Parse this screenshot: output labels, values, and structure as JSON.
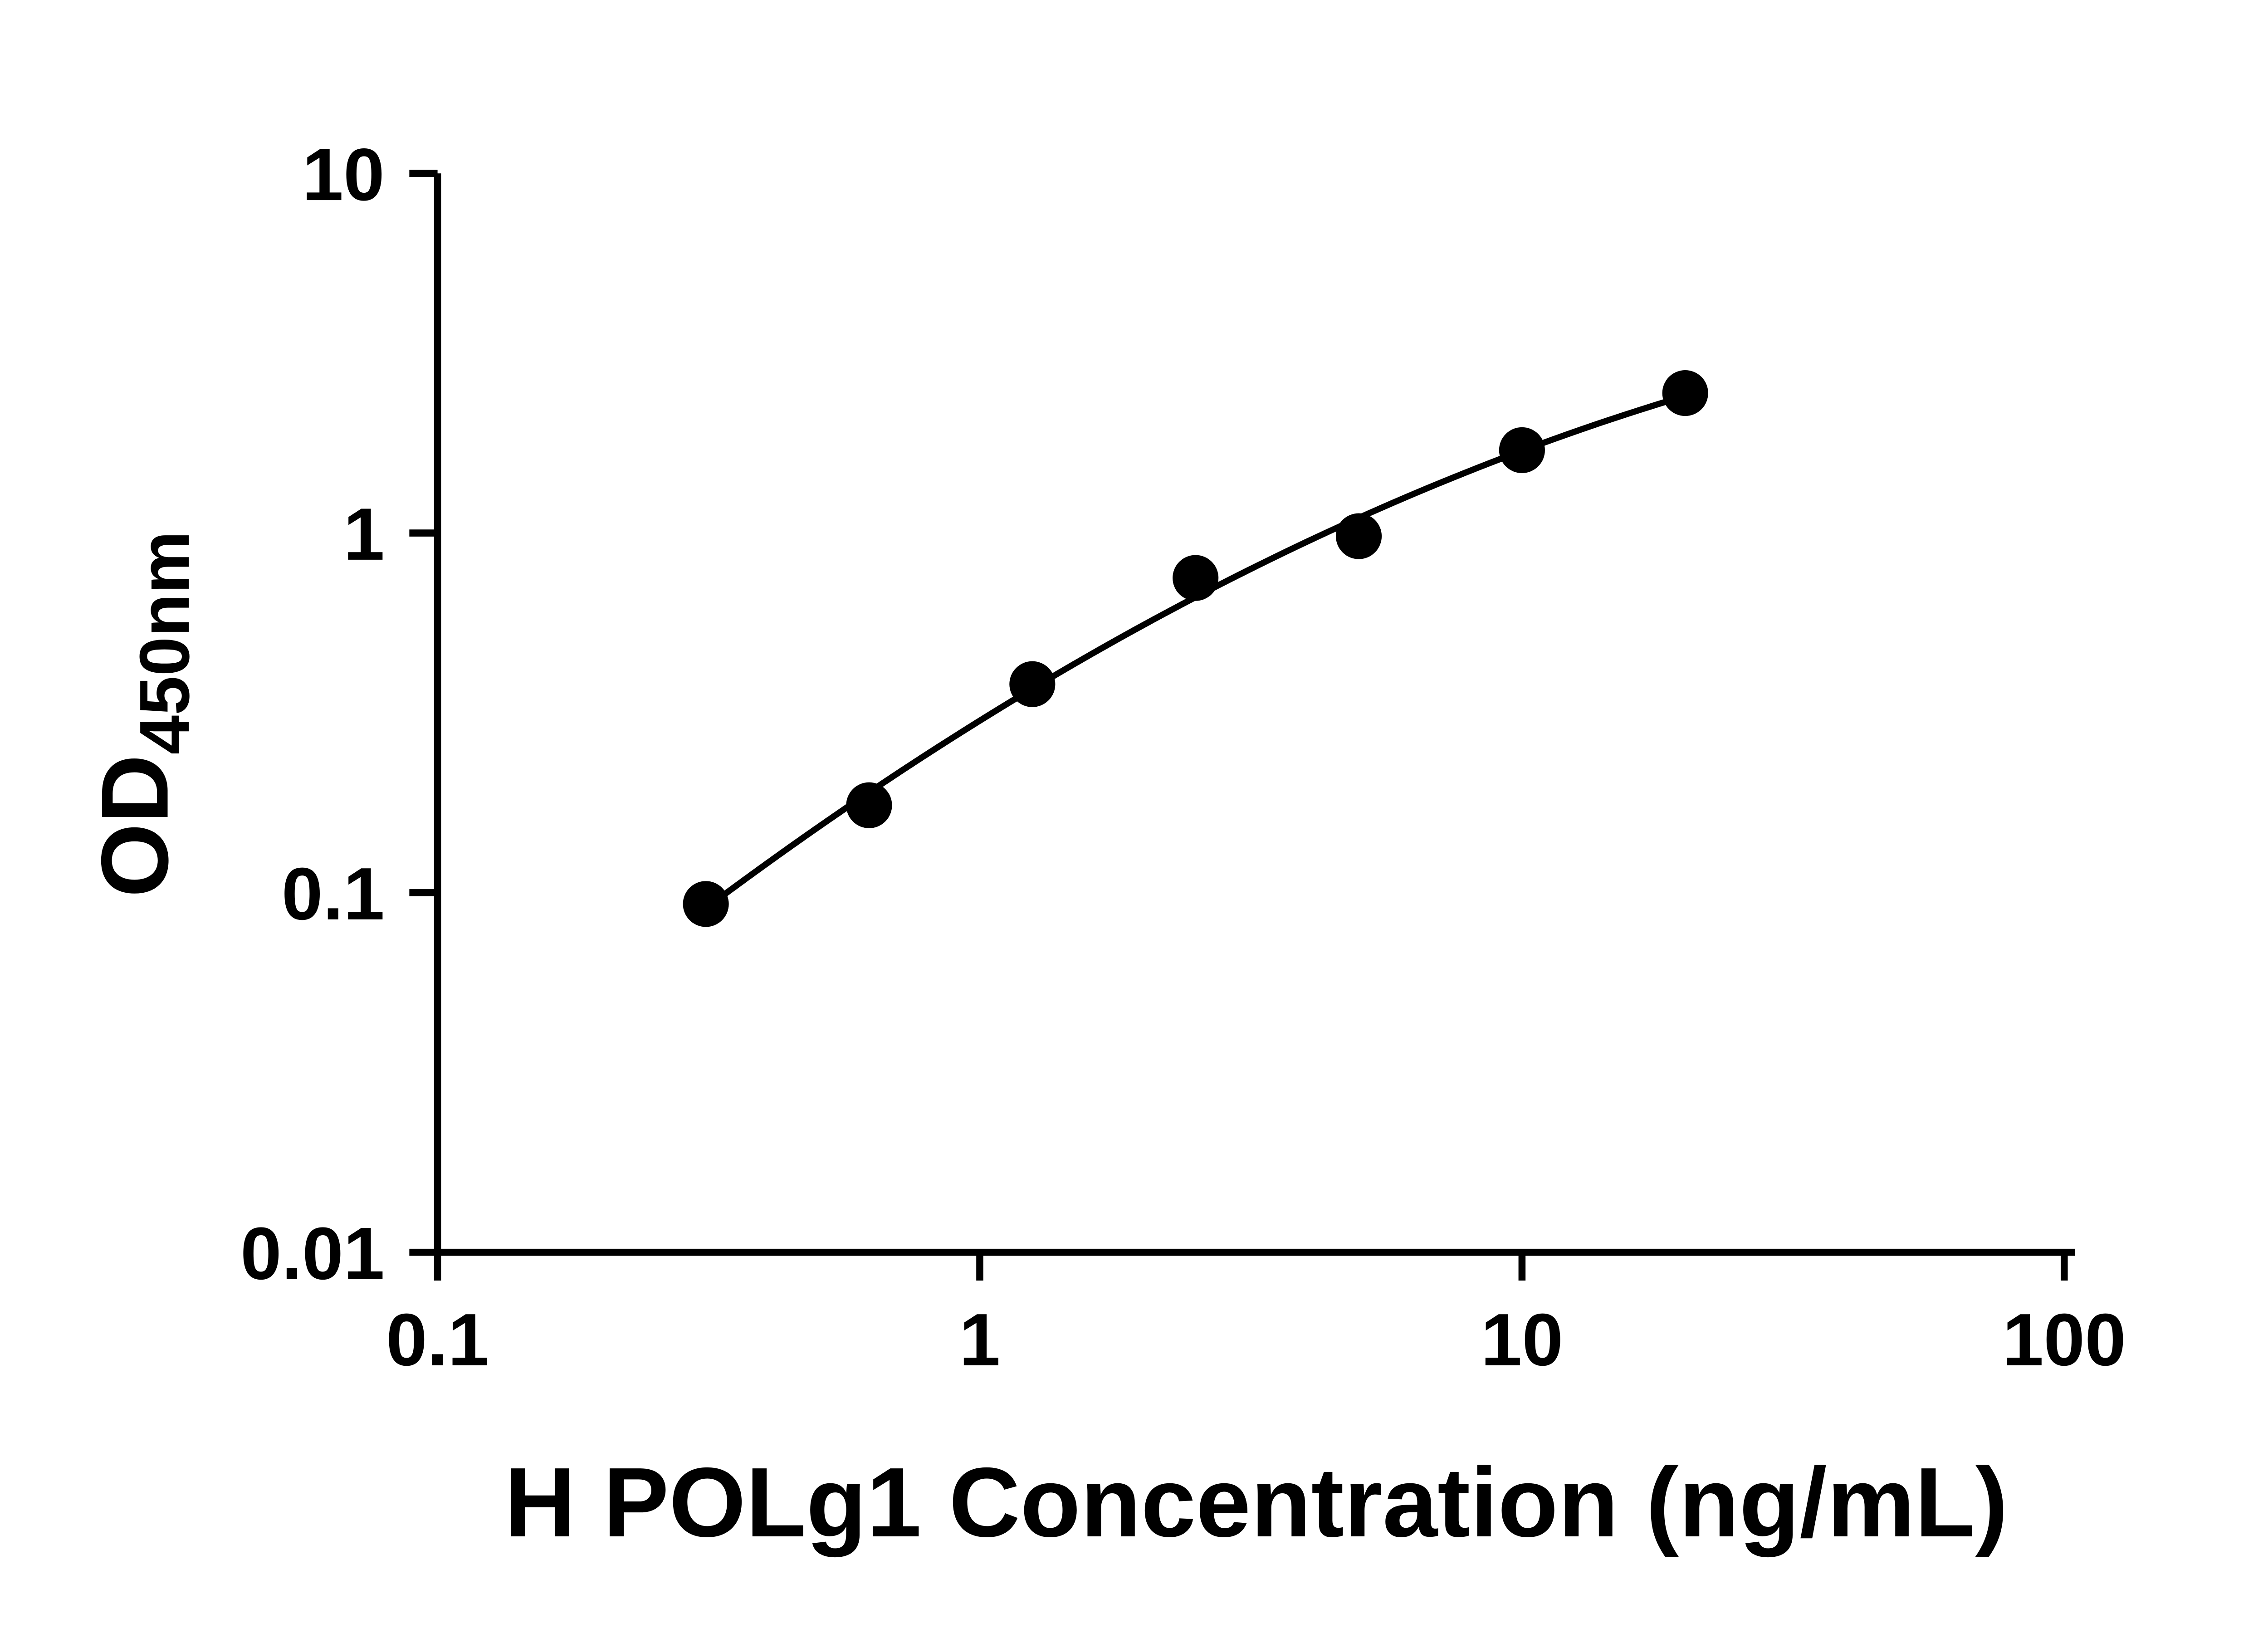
{
  "figure": {
    "background_color": "#ffffff",
    "ink_color": "#000000"
  },
  "chart_data": {
    "type": "scatter",
    "title": "",
    "xlabel": "H POLg1 Concentration (ng/mL)",
    "ylabel_main": "OD",
    "ylabel_sub": "450nm",
    "x_scale": "log10",
    "y_scale": "log10",
    "xlim": [
      0.1,
      100
    ],
    "ylim": [
      0.01,
      10
    ],
    "grid": false,
    "legend": "none",
    "x_ticks": [
      {
        "value": 0.1,
        "label": "0.1"
      },
      {
        "value": 1,
        "label": "1"
      },
      {
        "value": 10,
        "label": "10"
      },
      {
        "value": 100,
        "label": "100"
      }
    ],
    "y_ticks": [
      {
        "value": 10,
        "label": "10"
      },
      {
        "value": 1,
        "label": "1"
      },
      {
        "value": 0.1,
        "label": "0.1"
      },
      {
        "value": 0.01,
        "label": "0.01"
      }
    ],
    "points": [
      {
        "x": 0.3125,
        "y": 0.093
      },
      {
        "x": 0.625,
        "y": 0.175
      },
      {
        "x": 1.25,
        "y": 0.38
      },
      {
        "x": 2.5,
        "y": 0.75
      },
      {
        "x": 5,
        "y": 0.98
      },
      {
        "x": 10,
        "y": 1.7
      },
      {
        "x": 20,
        "y": 2.45
      }
    ],
    "fit_curve": {
      "type": "quadratic-fit-loglog",
      "x_start": 0.3125,
      "x_end": 20
    },
    "marker": {
      "shape": "circle",
      "color": "#000000",
      "radius_px": 13
    },
    "line_color": "#000000",
    "axis_color": "#000000"
  }
}
